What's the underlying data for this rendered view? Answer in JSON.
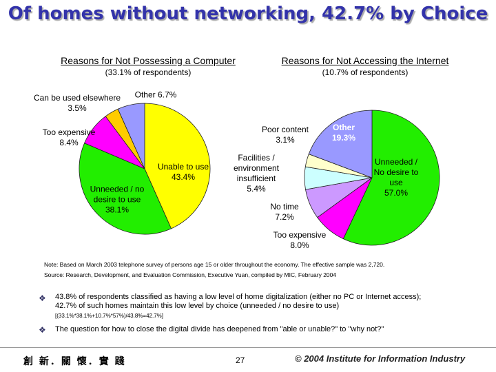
{
  "title": "Of homes without networking, 42.7% by Choice",
  "chart_data": [
    {
      "type": "pie",
      "title": "Reasons for Not Possessing a Computer",
      "subtitle": "(33.1% of respondents)",
      "categories": [
        "Unable to use",
        "Unneeded / no desire to use",
        "Too expensive",
        "Can be used elsewhere",
        "Other"
      ],
      "values": [
        43.4,
        38.1,
        8.4,
        3.5,
        6.7
      ],
      "value_labels": [
        "43.4%",
        "38.1%",
        "8.4%",
        "3.5%",
        "6.7%"
      ],
      "colors": [
        "#ffff00",
        "#22ee00",
        "#ff00ff",
        "#ffcc00",
        "#9999ff"
      ]
    },
    {
      "type": "pie",
      "title": "Reasons for Not Accessing the Internet",
      "subtitle": "(10.7% of respondents)",
      "categories": [
        "Unneeded / No desire to use",
        "Too expensive",
        "No time",
        "Facilities / environment insufficient",
        "Poor content",
        "Other"
      ],
      "values": [
        57.0,
        8.0,
        7.2,
        5.4,
        3.1,
        19.3
      ],
      "value_labels": [
        "57.0%",
        "8.0%",
        "7.2%",
        "5.4%",
        "3.1%",
        "19.3%"
      ],
      "colors": [
        "#22ee00",
        "#ff00ff",
        "#cc99ff",
        "#ccffff",
        "#ffffcc",
        "#9999ff"
      ]
    }
  ],
  "notes": [
    "Note: Based on March 2003 telephone survey of persons age 15 or older throughout the economy. The effective sample was 2,720.",
    "Source: Research, Development, and Evaluation Commission, Executive Yuan, compiled by MIC, February 2004"
  ],
  "bullets": [
    "43.8% of respondents classified as having a low level of home digitalization (either no PC or Internet access); 42.7% of such homes maintain this low level by choice (unneeded / no desire to use)",
    "The question for how to close the digital divide has deepened from \"able or unable?\" to \"why not?\""
  ],
  "formula": "[(33.1%*38.1%+10.7%*57%)/43.8%=42.7%]",
  "footer": {
    "motto": "創 新．關 懷．實 踐",
    "page": "27",
    "copyright": "© 2004 Institute for Information Industry"
  }
}
